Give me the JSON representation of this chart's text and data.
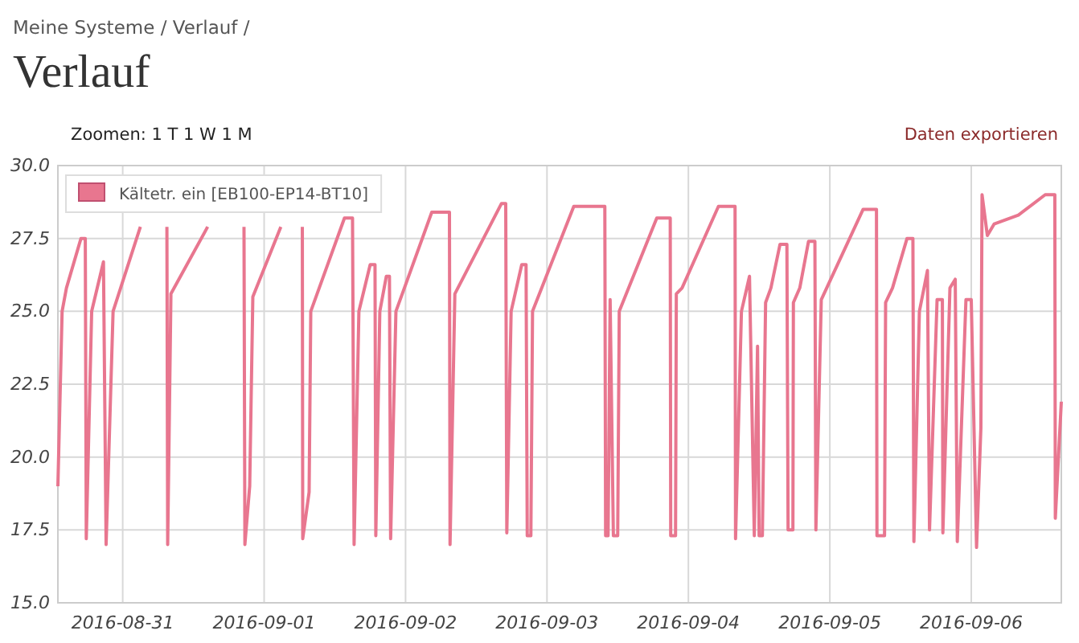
{
  "chart_data": {
    "type": "line",
    "title": "Verlauf",
    "subtitle": "Meine Systeme / Verlauf /",
    "annotations": [
      "Zoomen: 1 T 1 W 1 M",
      "Daten exportieren"
    ],
    "xlim": [
      "2016-08-30T13:00",
      "2016-09-06T15:17"
    ],
    "xticks": [
      "2016-08-31",
      "2016-09-01",
      "2016-09-02",
      "2016-09-03",
      "2016-09-04",
      "2016-09-05",
      "2016-09-06"
    ],
    "ylim": [
      15,
      30
    ],
    "yticks": [
      {
        "value": 15,
        "label": "15.0"
      },
      {
        "value": 17.5,
        "label": "17.5"
      },
      {
        "value": 20,
        "label": "20.0"
      },
      {
        "value": 22.5,
        "label": "22.5"
      },
      {
        "value": 25,
        "label": "25.0"
      },
      {
        "value": 27.5,
        "label": "27.5"
      },
      {
        "value": 30,
        "label": "30.0"
      }
    ],
    "grid": true,
    "legend": "top left",
    "marker": "none",
    "line_style": "solid",
    "series": [
      {
        "name": "Kältetr. ein [EB100-EP14-BT10]",
        "color": "#e8768f",
        "x": [
          "2016-08-30T13:00",
          "2016-08-30T13:43",
          "2016-08-30T14:27",
          "2016-08-30T16:55",
          "2016-08-30T17:39",
          "2016-08-30T17:49",
          "2016-08-30T18:44",
          "2016-08-30T20:44",
          "2016-08-30T21:11",
          "2016-08-30T22:22",
          "2016-08-31T03:00",
          "2016-08-31T03:49",
          "2016-08-31T07:22",
          "2016-08-31T07:30",
          "2016-08-31T07:38",
          "2016-08-31T08:11",
          "2016-08-31T14:25",
          "2016-08-31T16:05",
          "2016-08-31T20:27",
          "2016-08-31T20:35",
          "2016-08-31T20:44",
          "2016-08-31T21:33",
          "2016-08-31T22:05",
          "2016-09-01T02:50",
          "2016-09-01T03:49",
          "2016-09-01T06:25",
          "2016-09-01T06:29",
          "2016-09-01T06:33",
          "2016-09-01T07:38",
          "2016-09-01T07:55",
          "2016-09-01T13:38",
          "2016-09-01T15:00",
          "2016-09-01T15:16",
          "2016-09-01T16:05",
          "2016-09-01T18:00",
          "2016-09-01T18:49",
          "2016-09-01T18:57",
          "2016-09-01T19:38",
          "2016-09-01T20:44",
          "2016-09-01T21:16",
          "2016-09-01T21:28",
          "2016-09-01T22:22",
          "2016-09-02T04:27",
          "2016-09-02T07:27",
          "2016-09-02T07:33",
          "2016-09-02T08:22",
          "2016-09-02T16:17",
          "2016-09-02T17:00",
          "2016-09-02T17:11",
          "2016-09-02T17:55",
          "2016-09-02T19:43",
          "2016-09-02T20:27",
          "2016-09-02T20:39",
          "2016-09-02T21:16",
          "2016-09-02T21:33",
          "2016-09-03T04:33",
          "2016-09-03T09:49",
          "2016-09-03T09:57",
          "2016-09-03T10:22",
          "2016-09-03T10:43",
          "2016-09-03T11:16",
          "2016-09-03T12:00",
          "2016-09-03T12:16",
          "2016-09-03T18:38",
          "2016-09-03T20:55",
          "2016-09-03T21:00",
          "2016-09-03T21:49",
          "2016-09-03T21:57",
          "2016-09-03T22:55",
          "2016-09-04T05:06",
          "2016-09-04T07:55",
          "2016-09-04T08:00",
          "2016-09-04T09:00",
          "2016-09-04T10:22",
          "2016-09-04T11:11",
          "2016-09-04T11:44",
          "2016-09-04T12:00",
          "2016-09-04T12:33",
          "2016-09-04T13:06",
          "2016-09-04T14:00",
          "2016-09-04T15:33",
          "2016-09-04T16:43",
          "2016-09-04T16:55",
          "2016-09-04T17:44",
          "2016-09-04T17:49",
          "2016-09-04T18:54",
          "2016-09-04T20:23",
          "2016-09-04T21:28",
          "2016-09-04T21:38",
          "2016-09-04T22:33",
          "2016-09-05T05:39",
          "2016-09-05T07:55",
          "2016-09-05T08:00",
          "2016-09-05T09:17",
          "2016-09-05T09:28",
          "2016-09-05T10:38",
          "2016-09-05T13:06",
          "2016-09-05T14:06",
          "2016-09-05T14:16",
          "2016-09-05T15:12",
          "2016-09-05T16:34",
          "2016-09-05T16:55",
          "2016-09-05T18:12",
          "2016-09-05T19:06",
          "2016-09-05T19:11",
          "2016-09-05T20:23",
          "2016-09-05T21:17",
          "2016-09-05T21:38",
          "2016-09-05T23:06",
          "2016-09-06T00:00",
          "2016-09-06T00:54",
          "2016-09-06T01:38",
          "2016-09-06T01:50",
          "2016-09-06T02:44",
          "2016-09-06T03:54",
          "2016-09-06T08:00",
          "2016-09-06T12:33",
          "2016-09-06T14:11",
          "2016-09-06T14:16",
          "2016-09-06T15:17"
        ],
        "values": [
          19.0,
          25.0,
          25.8,
          27.5,
          27.5,
          17.2,
          25.0,
          26.7,
          17.0,
          25.0,
          27.9,
          null,
          null,
          27.9,
          17.0,
          25.6,
          27.9,
          null,
          null,
          27.9,
          17.0,
          19.0,
          25.5,
          27.9,
          null,
          null,
          27.9,
          17.2,
          18.8,
          25.0,
          28.2,
          28.2,
          17.0,
          25.0,
          26.6,
          26.6,
          17.3,
          25.0,
          26.2,
          26.2,
          17.2,
          25.0,
          28.4,
          28.4,
          17.0,
          25.6,
          28.7,
          28.7,
          17.4,
          25.0,
          26.6,
          26.6,
          17.3,
          17.3,
          25.0,
          28.6,
          28.6,
          17.3,
          17.3,
          25.4,
          17.3,
          17.3,
          25.0,
          28.2,
          28.2,
          17.3,
          17.3,
          25.6,
          25.8,
          28.6,
          28.6,
          17.2,
          25.0,
          26.2,
          17.3,
          23.8,
          17.3,
          17.3,
          25.3,
          25.8,
          27.3,
          27.3,
          17.5,
          17.5,
          25.3,
          25.8,
          27.4,
          27.4,
          17.5,
          25.4,
          28.5,
          28.5,
          17.3,
          17.3,
          25.3,
          25.8,
          27.5,
          27.5,
          17.1,
          25.0,
          26.4,
          17.5,
          25.4,
          25.4,
          17.4,
          25.8,
          26.1,
          17.1,
          25.4,
          25.4,
          16.9,
          21.0,
          29.0,
          27.6,
          28.0,
          28.3,
          29.0,
          29.0,
          17.9,
          21.9
        ]
      }
    ]
  }
}
